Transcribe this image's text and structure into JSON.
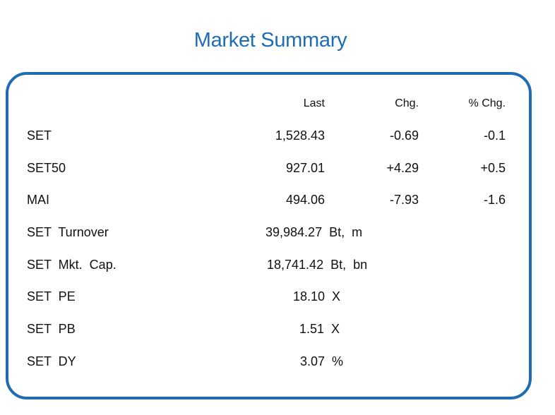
{
  "title": "Market Summary",
  "headers": {
    "last": "Last",
    "chg": "Chg.",
    "pct_chg": "% Chg."
  },
  "indices": [
    {
      "name": "SET",
      "last": "1,528.43",
      "chg": "-0.69",
      "pct_chg": "-0.1"
    },
    {
      "name": "SET50",
      "last": "927.01",
      "chg": "+4.29",
      "pct_chg": "+0.5"
    },
    {
      "name": "MAI",
      "last": "494.06",
      "chg": "-7.93",
      "pct_chg": "-1.6"
    }
  ],
  "stats": [
    {
      "name": "SET  Turnover",
      "value": "39,984.27  Bt,  m"
    },
    {
      "name": "SET  Mkt.  Cap.",
      "value": "18,741.42  Bt,  bn"
    },
    {
      "name": "SET  PE",
      "value": "18.10  X"
    },
    {
      "name": "SET  PB",
      "value": "1.51  X"
    },
    {
      "name": "SET  DY",
      "value": "3.07  %"
    }
  ]
}
